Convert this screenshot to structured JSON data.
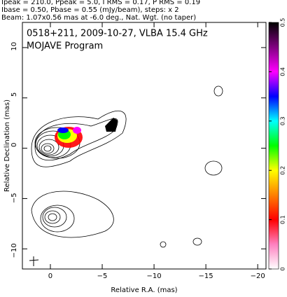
{
  "chart_data": {
    "type": "contour",
    "header": [
      "Ipeak = 210.0, Ppeak = 5.0, I RMS = 0.17, P RMS = 0.19",
      "Ibase = 0.50, Pbase = 0.55 (mJy/beam), steps: x 2",
      "Beam: 1.07x0.56 mas at -6.0 deg., Nat. Wgt. (no taper)"
    ],
    "title": "0518+211, 2009-10-27, VLBA 15.4 GHz",
    "subtitle": "MOJAVE Program",
    "xlabel": "Relative R.A. (mas)",
    "ylabel": "Relative Declination (mas)",
    "xlim": [
      2.7,
      -20.8
    ],
    "xticks": [
      0,
      {
        "value": -5,
        "label": "−5"
      },
      {
        "value": -10,
        "label": "−10"
      },
      {
        "value": -15,
        "label": "−15"
      },
      {
        "value": -20,
        "label": "−20"
      }
    ],
    "ylim": [
      -12,
      12.5
    ],
    "yticks": [
      {
        "value": -10,
        "label": "−10"
      },
      {
        "value": -5,
        "label": "−5"
      },
      0,
      5,
      10
    ],
    "colorbar": {
      "lim": [
        0,
        0.5
      ],
      "ticks": [
        0,
        0.1,
        0.2,
        0.3,
        0.4,
        0.5
      ],
      "colors": [
        "#ffffff",
        "#ff80c0",
        "#ff0000",
        "#ff8000",
        "#ffff00",
        "#00ff00",
        "#00ffff",
        "#0000ff",
        "#ff00ff",
        "#800080",
        "#000000"
      ]
    }
  }
}
